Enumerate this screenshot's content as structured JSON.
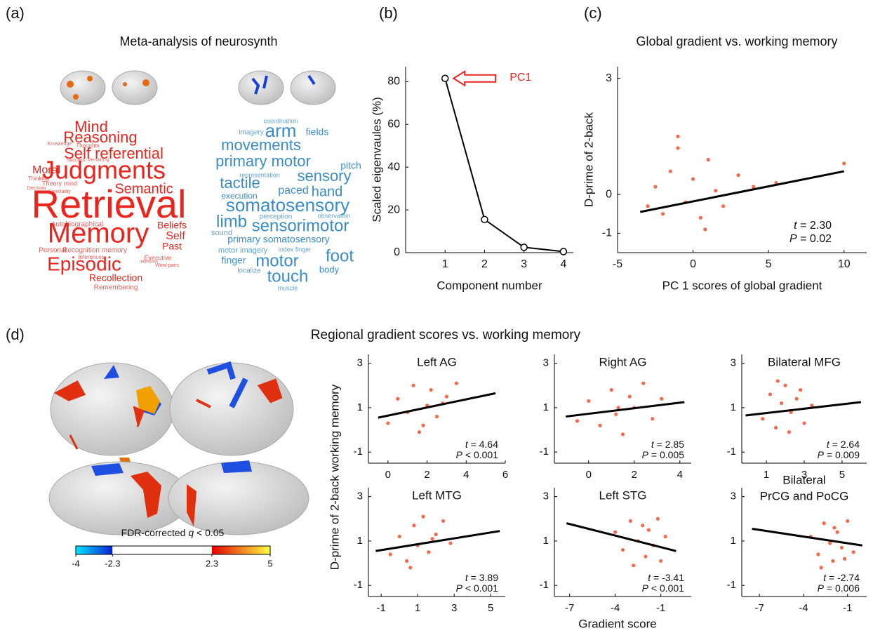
{
  "panel_labels": [
    "(a)",
    "(b)",
    "(c)",
    "(d)"
  ],
  "wordcloud": {
    "title": "Meta-analysis of neurosynth",
    "red_words": [
      "Mind",
      "Reasoning",
      "Self referential",
      "Moral",
      "Judgments",
      "Semantic",
      "Retrieval",
      "Memory",
      "Beliefs",
      "Self",
      "Past",
      "Episodic",
      "Recollection",
      "Remembering",
      "Autobiographical",
      "Personal",
      "Recognition memory",
      "Executive",
      "Inferences",
      "Word pairs",
      "Thoughts",
      "Knowledge",
      "Success",
      "Mentalizing",
      "Thinking",
      "Theory mind",
      "Decision",
      "Familiarity",
      "Intentions"
    ],
    "blue_words": [
      "coordination",
      "imagery",
      "arm",
      "fields",
      "movements",
      "primary motor",
      "pitch",
      "representation",
      "sensory",
      "tactile",
      "paced",
      "hand",
      "execution",
      "somatosensory",
      "limb",
      "sensorimotor",
      "perception",
      "sound",
      "primary somatosensory",
      "motor imagery",
      "index finger",
      "observation",
      "finger",
      "motor",
      "foot",
      "body",
      "localize",
      "touch",
      "muscle"
    ],
    "red_color": "#e8251e",
    "blue_color": "#3a8cc7"
  },
  "panel_d": {
    "title": "Regional gradient scores vs. working memory",
    "ylabel": "D-prime of 2-back working memory",
    "xlabel": "Gradient score"
  },
  "colorbar": {
    "label_prefix": "FDR-corrected ",
    "label_symbol": "q",
    "label_suffix": " < 0.05",
    "lim": [
      -4,
      5
    ],
    "ticks": [
      -4,
      -2.3,
      2.3,
      5
    ],
    "colors": [
      "#00e5ff",
      "#0a1fd0",
      "#ffffff",
      "#e30000",
      "#ffff40"
    ]
  },
  "chart_data": [
    {
      "type": "line",
      "x": [
        1,
        2,
        3,
        4
      ],
      "values": [
        81.5,
        15.5,
        2.5,
        0.5
      ],
      "xlim": [
        0,
        4.25
      ],
      "ylim": [
        0,
        87
      ],
      "xticks": [
        1,
        2,
        3,
        4
      ],
      "yticks": [
        0,
        20,
        40,
        60,
        80
      ],
      "xlabel": "Component number",
      "ylabel": "Scaled eigenvaules (%)",
      "annotation": "PC1",
      "color": "#000000",
      "annotation_color": "#e8251e"
    },
    {
      "type": "scatter",
      "title": "Global gradient vs. working memory",
      "xlabel": "PC 1 scores of global gradient",
      "ylabel": "D-prime of 2-back",
      "xlim": [
        -5,
        11.5
      ],
      "ylim": [
        -1.5,
        3.3
      ],
      "xticks": [
        -5,
        0,
        5,
        10
      ],
      "yticks": [
        -1,
        0,
        3
      ],
      "color": "#f26b4f",
      "x": [
        -3,
        -2.5,
        -2,
        -1.5,
        -1,
        -0.5,
        0,
        0.5,
        1,
        1.5,
        2,
        3,
        4,
        -1,
        0.8,
        5.5,
        10
      ],
      "values": [
        -0.3,
        0.2,
        -0.5,
        0.6,
        1.2,
        -0.2,
        0.4,
        -0.6,
        0.9,
        0.1,
        -0.3,
        0.5,
        0.2,
        1.5,
        -0.9,
        0.3,
        0.8
      ],
      "fit": {
        "x": [
          -3.5,
          10
        ],
        "y": [
          -0.45,
          0.6
        ]
      },
      "stats": [
        {
          "symbol": "t",
          "text": " = 2.30"
        },
        {
          "symbol": "P",
          "text": " = 0.02"
        }
      ]
    },
    {
      "type": "scatter",
      "title": "Left AG",
      "xlim": [
        -1,
        6
      ],
      "ylim": [
        -1.5,
        3.4
      ],
      "xticks": [
        0,
        2,
        4,
        6
      ],
      "yticks": [
        -1,
        1,
        3
      ],
      "color": "#f26b4f",
      "x": [
        0,
        0.5,
        1,
        1.3,
        1.6,
        2,
        2.2,
        2.5,
        3,
        3.5,
        1.8,
        2.8
      ],
      "values": [
        0.3,
        1.4,
        0.8,
        2,
        -0.1,
        1.1,
        1.8,
        0.6,
        1.5,
        2.1,
        0.2,
        1.2
      ],
      "fit": {
        "x": [
          -0.5,
          5.5
        ],
        "y": [
          0.55,
          1.65
        ]
      },
      "stats": [
        {
          "symbol": "t",
          "text": " = 4.64"
        },
        {
          "symbol": "P",
          "text": " < 0.001"
        }
      ]
    },
    {
      "type": "scatter",
      "title": "Right AG",
      "xlim": [
        -1.5,
        4.5
      ],
      "ylim": [
        -1.5,
        3.4
      ],
      "xticks": [
        0,
        2,
        4
      ],
      "yticks": [
        -1,
        1,
        3
      ],
      "color": "#f26b4f",
      "x": [
        -0.5,
        0,
        0.5,
        1,
        1.2,
        1.5,
        1.8,
        2,
        2.4,
        2.8,
        3.2,
        1.3
      ],
      "values": [
        0.4,
        1.3,
        0.2,
        1.8,
        0.7,
        -0.2,
        1.5,
        1,
        2.1,
        0.5,
        1.4,
        1
      ],
      "fit": {
        "x": [
          -1,
          4.2
        ],
        "y": [
          0.6,
          1.25
        ]
      },
      "stats": [
        {
          "symbol": "t",
          "text": " = 2.85"
        },
        {
          "symbol": "P",
          "text": " = 0.005"
        }
      ]
    },
    {
      "type": "scatter",
      "title": "Bilateral MFG",
      "xlim": [
        -0.3,
        6.3
      ],
      "ylim": [
        -1.5,
        3.4
      ],
      "xticks": [
        1,
        3,
        5
      ],
      "yticks": [
        -1,
        1,
        3
      ],
      "color": "#f26b4f",
      "x": [
        0.8,
        1.2,
        1.5,
        1.8,
        2,
        2.3,
        2.6,
        3,
        3.4,
        1.6,
        2.2,
        2.8
      ],
      "values": [
        0.5,
        1.6,
        0.1,
        1.2,
        2,
        0.8,
        1.4,
        0.3,
        1.1,
        2.2,
        -0.1,
        1.8
      ],
      "fit": {
        "x": [
          -0.1,
          6
        ],
        "y": [
          0.65,
          1.25
        ]
      },
      "stats": [
        {
          "symbol": "t",
          "text": " = 2.64"
        },
        {
          "symbol": "P",
          "text": " = 0.009"
        }
      ]
    },
    {
      "type": "scatter",
      "title": "Left MTG",
      "xlim": [
        -1.7,
        5.8
      ],
      "ylim": [
        -1.5,
        3.4
      ],
      "xticks": [
        -1,
        1,
        3,
        5
      ],
      "yticks": [
        -1,
        1,
        3
      ],
      "color": "#f26b4f",
      "x": [
        -0.5,
        0,
        0.4,
        0.8,
        1,
        1.3,
        1.6,
        2,
        2.4,
        2.8,
        0.6,
        1.8
      ],
      "values": [
        0.4,
        1.2,
        0.1,
        1.7,
        0.8,
        2.1,
        0.5,
        1.3,
        1.9,
        0.9,
        -0.2,
        1.1
      ],
      "fit": {
        "x": [
          -1.3,
          5.5
        ],
        "y": [
          0.55,
          1.45
        ]
      },
      "stats": [
        {
          "symbol": "t",
          "text": " = 3.89"
        },
        {
          "symbol": "P",
          "text": " < 0.001"
        }
      ]
    },
    {
      "type": "scatter",
      "title": "Left STG",
      "xlim": [
        -8,
        1
      ],
      "ylim": [
        -1.5,
        3.4
      ],
      "xticks": [
        -7,
        -4,
        -1
      ],
      "yticks": [
        -1,
        1,
        3
      ],
      "color": "#f26b4f",
      "x": [
        -4,
        -3.5,
        -3,
        -2.5,
        -2,
        -1.8,
        -1.5,
        -1.2,
        -1,
        -0.7,
        -2.8,
        -2.2
      ],
      "values": [
        1.4,
        0.6,
        1.9,
        1,
        0.3,
        1.5,
        0.8,
        2,
        0.1,
        1.2,
        -0.1,
        1.7
      ],
      "fit": {
        "x": [
          -7.2,
          0
        ],
        "y": [
          1.8,
          0.55
        ]
      },
      "stats": [
        {
          "symbol": "t",
          "text": " = -3.41"
        },
        {
          "symbol": "P",
          "text": " < 0.001"
        }
      ]
    },
    {
      "type": "scatter",
      "title": [
        "Bilateral",
        "PrCG and PoCG"
      ],
      "xlim": [
        -8.2,
        0.3
      ],
      "ylim": [
        -1.5,
        3.4
      ],
      "xticks": [
        -7,
        -4,
        -1
      ],
      "yticks": [
        -1,
        1,
        3
      ],
      "color": "#f26b4f",
      "x": [
        -3.5,
        -3,
        -2.6,
        -2.2,
        -2,
        -1.7,
        -1.4,
        -1,
        -0.6,
        -2.8,
        -1.9,
        -1.2
      ],
      "values": [
        1.2,
        0.4,
        1.8,
        0.9,
        0.1,
        1.4,
        0.7,
        1.9,
        0.5,
        -0.2,
        1.6,
        0.2
      ],
      "fit": {
        "x": [
          -7.5,
          0
        ],
        "y": [
          1.55,
          0.8
        ]
      },
      "stats": [
        {
          "symbol": "t",
          "text": " = -2.74"
        },
        {
          "symbol": "P",
          "text": " = 0.006"
        }
      ]
    }
  ]
}
